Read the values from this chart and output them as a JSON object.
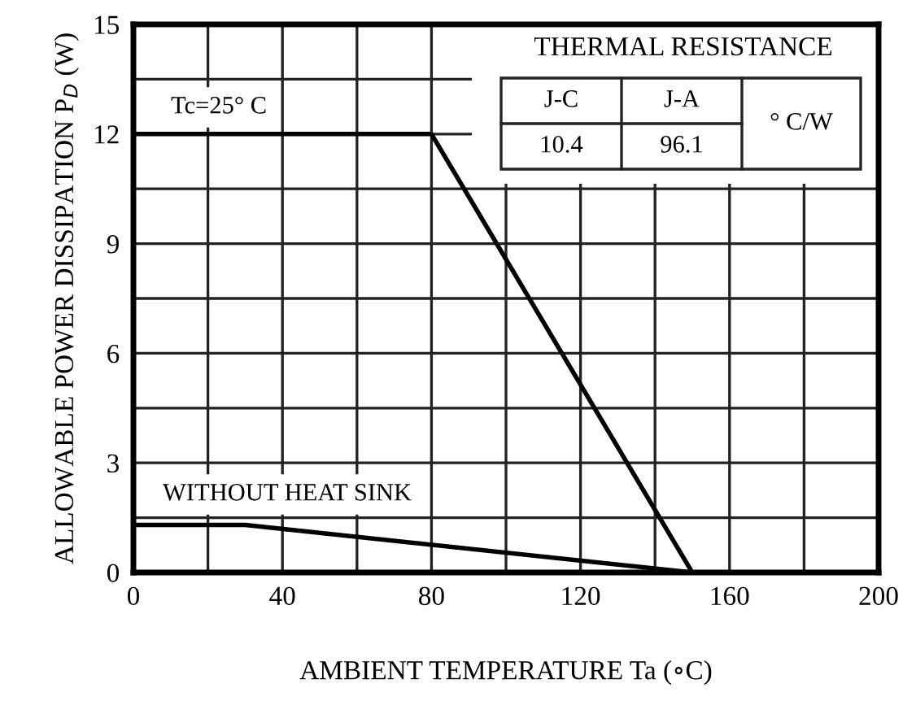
{
  "chart_data": {
    "type": "line",
    "xlabel": "AMBIENT TEMPERATURE Ta (∘C)",
    "ylabel": "ALLOWABLE POWER DISSIPATION P$_{D}$ (W)",
    "series": [
      {
        "color": "#000000",
        "x": [
          0,
          80,
          150
        ],
        "values": [
          12,
          12,
          0
        ]
      },
      {
        "color": "#000000",
        "x": [
          0,
          30,
          150
        ],
        "values": [
          1.3,
          1.3,
          0
        ]
      }
    ],
    "xlim": [
      0,
      200
    ],
    "xticks": [
      0,
      {
        "value": 20,
        "label": null
      },
      40,
      {
        "value": 60,
        "label": null
      },
      80,
      {
        "value": 100,
        "label": null
      },
      120,
      {
        "value": 140,
        "label": null
      },
      160,
      {
        "value": 180,
        "label": null
      },
      200
    ],
    "ylim": [
      0,
      15
    ],
    "yticks": [
      0,
      {
        "value": 1.5,
        "label": null
      },
      3,
      {
        "value": 4.5,
        "label": null
      },
      6,
      {
        "value": 7.5,
        "label": null
      },
      9,
      {
        "value": 10.5,
        "label": null
      },
      12,
      {
        "value": 13.5,
        "label": null
      },
      15
    ],
    "grid": true,
    "legend": false,
    "marker": "none",
    "line_style": "solid",
    "annotations": [
      "Tc=25° C",
      "WITHOUT HEAT SINK",
      "THERMAL RESISTANCE",
      "J-C",
      "J-A",
      "° C/W",
      "10.4",
      "96.1"
    ]
  }
}
